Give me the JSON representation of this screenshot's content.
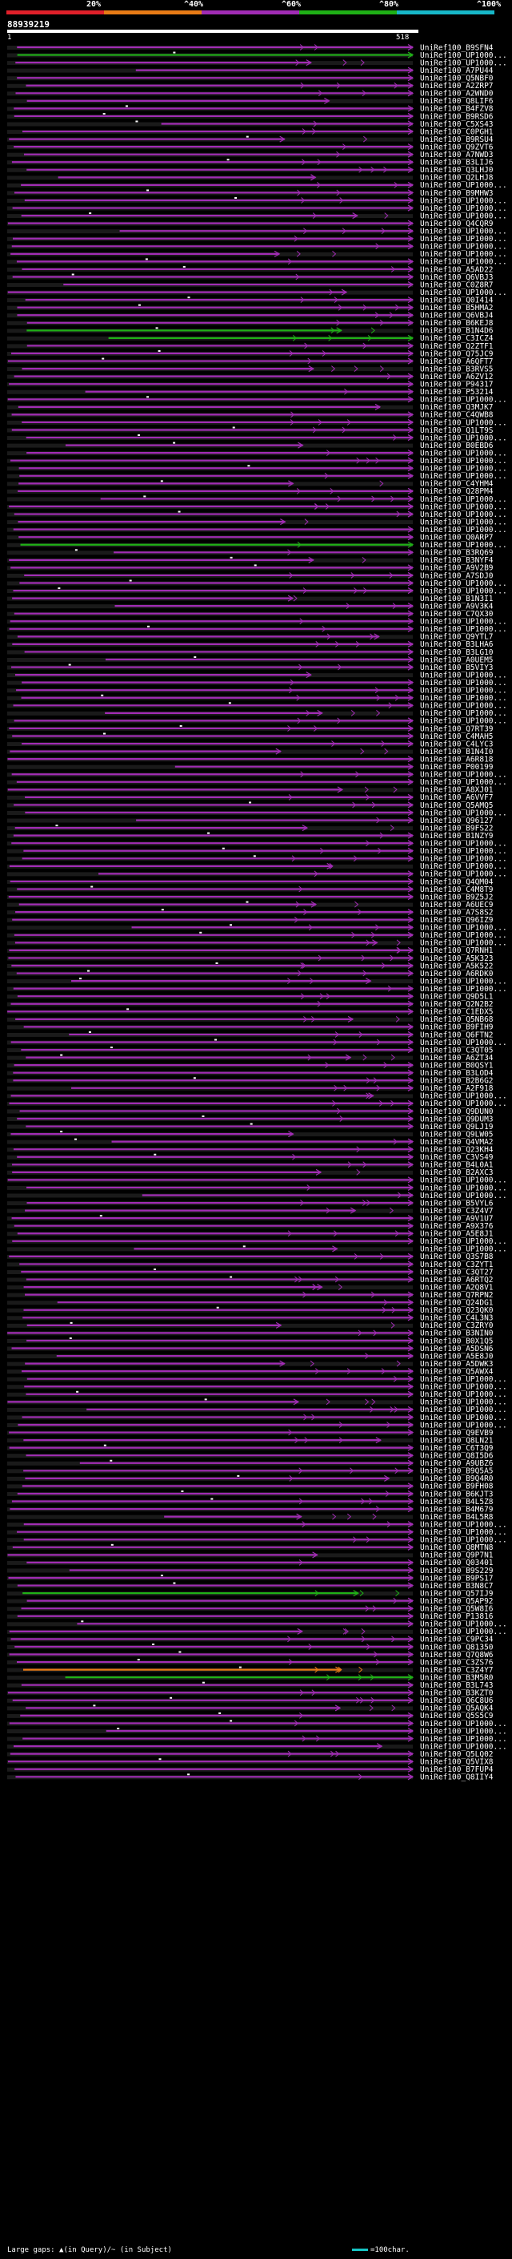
{
  "legend": {
    "labels": [
      "20%",
      "^40%",
      "^60%",
      "^80%",
      "^100%"
    ],
    "colors": [
      "#e0202a",
      "#e87b16",
      "#a12cb4",
      "#1fb016",
      "#17b7c8"
    ]
  },
  "query": {
    "name": "88939219",
    "start": "1",
    "end": "518"
  },
  "hits": [
    "UniRef100_B9SFN4",
    "UniRef100_UP1000...",
    "UniRef100_UP1000...",
    "UniRef100_A7PU44",
    "UniRef100_Q5NBF0",
    "UniRef100_A2ZRP7",
    "UniRef100_A2WND0",
    "UniRef100_Q8LIF6",
    "UniRef100_B4FZV8",
    "UniRef100_B9RSD6",
    "UniRef100_C5XS43",
    "UniRef100_C0PGH1",
    "UniRef100_B9RSU4",
    "UniRef100_Q9ZVT6",
    "UniRef100_A7NWD3",
    "UniRef100_B3LIJ6",
    "UniRef100_Q3LHJ0",
    "UniRef100_Q2LHJ8",
    "UniRef100_UP1000...",
    "UniRef100_B9MHW3",
    "UniRef100_UP1000...",
    "UniRef100_UP1000...",
    "UniRef100_UP1000...",
    "UniRef100_Q4CQR9",
    "UniRef100_UP1000...",
    "UniRef100_UP1000...",
    "UniRef100_UP1000...",
    "UniRef100_UP1000...",
    "UniRef100_UP1000...",
    "UniRef100_A5AD22",
    "UniRef100_Q6VBJ3",
    "UniRef100_C0Z8R7",
    "UniRef100_UP1000...",
    "UniRef100_Q0I414",
    "UniRef100_B5HMA2",
    "UniRef100_Q6VBJ4",
    "UniRef100_B6KEJ8",
    "UniRef100_B1N4D6",
    "UniRef100_C3ICZ4",
    "UniRef100_Q2ZTF1",
    "UniRef100_Q75JC9",
    "UniRef100_A6QFT7",
    "UniRef100_B3RVS5",
    "UniRef100_A6ZV12",
    "UniRef100_P94317",
    "UniRef100_P53214",
    "UniRef100_UP1000...",
    "UniRef100_Q3MJK7",
    "UniRef100_C4QWB8",
    "UniRef100_UP1000...",
    "UniRef100_Q1LT9S",
    "UniRef100_UP1000...",
    "UniRef100_B0EBD6",
    "UniRef100_UP1000...",
    "UniRef100_UP1000...",
    "UniRef100_UP1000...",
    "UniRef100_UP1000...",
    "UniRef100_C4YHM4",
    "UniRef100_Q28PM4",
    "UniRef100_UP1000...",
    "UniRef100_UP1000...",
    "UniRef100_UP1000...",
    "UniRef100_UP1000...",
    "UniRef100_UP1000...",
    "UniRef100_Q0ARP7",
    "UniRef100_UP1000...",
    "UniRef100_B3RQ69",
    "UniRef100_B3NYF4",
    "UniRef100_A9V2B9",
    "UniRef100_A7SDJ0",
    "UniRef100_UP1000...",
    "UniRef100_UP1000...",
    "UniRef100_B1N3I1",
    "UniRef100_A9V3K4",
    "UniRef100_C7QX30",
    "UniRef100_UP1000...",
    "UniRef100_UP1000...",
    "UniRef100_Q9YTL7",
    "UniRef100_B3LHA6",
    "UniRef100_B3LG10",
    "UniRef100_A0UEM5",
    "UniRef100_B5VIY3",
    "UniRef100_UP1000...",
    "UniRef100_UP1000...",
    "UniRef100_UP1000...",
    "UniRef100_UP1000...",
    "UniRef100_UP1000...",
    "UniRef100_UP1000...",
    "UniRef100_UP1000...",
    "UniRef100_Q7RT39",
    "UniRef100_C4MAH5",
    "UniRef100_C4LYC3",
    "UniRef100_B1N4I0",
    "UniRef100_A6R818",
    "UniRef100_P00199",
    "UniRef100_UP1000...",
    "UniRef100_UP1000...",
    "UniRef100_A8XJ01",
    "UniRef100_A6VVF7",
    "UniRef100_Q5AMQ5",
    "UniRef100_UP1000...",
    "UniRef100_Q96127",
    "UniRef100_B9FS22",
    "UniRef100_B1NZY9",
    "UniRef100_UP1000...",
    "UniRef100_UP1000...",
    "UniRef100_UP1000...",
    "UniRef100_UP1000...",
    "UniRef100_UP1000...",
    "UniRef100_Q4QM04",
    "UniRef100_C4M8T9",
    "UniRef100_B9Z5J2",
    "UniRef100_A6UEC9",
    "UniRef100_A7S8S2",
    "UniRef100_Q96IZ9",
    "UniRef100_UP1000...",
    "UniRef100_UP1000...",
    "UniRef100_UP1000...",
    "UniRef100_Q7RNH1",
    "UniRef100_A5K323",
    "UniRef100_A5K522",
    "UniRef100_A6RDK0",
    "UniRef100_UP1000...",
    "UniRef100_UP1000...",
    "UniRef100_Q9D5L1",
    "UniRef100_Q2N2B2",
    "UniRef100_C1EDX5",
    "UniRef100_Q5NB68",
    "UniRef100_B9FIH9",
    "UniRef100_Q6FTN2",
    "UniRef100_UP1000...",
    "UniRef100_C3QT05",
    "UniRef100_A6ZT34",
    "UniRef100_B0QSY1",
    "UniRef100_B3LOD4",
    "UniRef100_B2B6G2",
    "UniRef100_A2F918",
    "UniRef100_UP1000...",
    "UniRef100_UP1000...",
    "UniRef100_Q9DUN0",
    "UniRef100_Q9DUM3",
    "UniRef100_Q9LJ19",
    "UniRef100_Q9LW05",
    "UniRef100_Q4VMA2",
    "UniRef100_Q23KH4",
    "UniRef100_C3VS49",
    "UniRef100_B4L0A1",
    "UniRef100_B2AXC3",
    "UniRef100_UP1000...",
    "UniRef100_UP1000...",
    "UniRef100_UP1000...",
    "UniRef100_B5VYL6",
    "UniRef100_C3Z4V7",
    "UniRef100_A9V1U7",
    "UniRef100_A9X376",
    "UniRef100_A5E8J1",
    "UniRef100_UP1000...",
    "UniRef100_UP1000...",
    "UniRef100_Q3S7B8",
    "UniRef100_C3ZYT1",
    "UniRef100_C3QT27",
    "UniRef100_A6RTQ2",
    "UniRef100_A2Q8V1",
    "UniRef100_Q7RPN2",
    "UniRef100_Q24DG1",
    "UniRef100_Q23QK0",
    "UniRef100_C4L3N3",
    "UniRef100_C3ZRY0",
    "UniRef100_B3NIN0",
    "UniRef100_B0X1Q5",
    "UniRef100_A5DSN6",
    "UniRef100_A5E8J0",
    "UniRef100_A5DWK3",
    "UniRef100_Q5AWX4",
    "UniRef100_UP1000...",
    "UniRef100_UP1000...",
    "UniRef100_UP1000...",
    "UniRef100_UP1000...",
    "UniRef100_UP1000...",
    "UniRef100_UP1000...",
    "UniRef100_UP1000...",
    "UniRef100_Q9EVB9",
    "UniRef100_Q8LN21",
    "UniRef100_C6T3Q9",
    "UniRef100_Q8I5D6",
    "UniRef100_A9UBZ6",
    "UniRef100_B9Q5A5",
    "UniRef100_B9Q4R0",
    "UniRef100_B9FH08",
    "UniRef100_B6KJT3",
    "UniRef100_B4L5Z8",
    "UniRef100_B4M679",
    "UniRef100_B4L5R8",
    "UniRef100_UP1000...",
    "UniRef100_UP1000...",
    "UniRef100_UP1000...",
    "UniRef100_Q8MTN8",
    "UniRef100_Q9P7N1",
    "UniRef100_Q03401",
    "UniRef100_B9S229",
    "UniRef100_B9PS17",
    "UniRef100_B3N8C7",
    "UniRef100_Q57IJ9",
    "UniRef100_Q5AP92",
    "UniRef100_Q5W8I6",
    "UniRef100_P13816",
    "UniRef100_UP1000...",
    "UniRef100_UP1000...",
    "UniRef100_C9PC34",
    "UniRef100_Q81350",
    "UniRef100_Q7Q8W6",
    "UniRef100_C3ZS76",
    "UniRef100_C3Z4Y7",
    "UniRef100_B3M5R0",
    "UniRef100_B3L743",
    "UniRef100_B3KZT0",
    "UniRef100_Q6C8U6",
    "UniRef100_Q5AQK4",
    "UniRef100_Q5S5C9",
    "UniRef100_UP1000...",
    "UniRef100_UP1000...",
    "UniRef100_UP1000...",
    "UniRef100_UP1000...",
    "UniRef100_Q5LQ02",
    "UniRef100_Q5VIX8",
    "UniRef100_B7FUP4",
    "UniRef100_Q8IIY4"
  ],
  "footer": {
    "large_gaps_text": "Large gaps: ▲(in Query)/~ (in Subject)",
    "scale_text": "=100char."
  }
}
